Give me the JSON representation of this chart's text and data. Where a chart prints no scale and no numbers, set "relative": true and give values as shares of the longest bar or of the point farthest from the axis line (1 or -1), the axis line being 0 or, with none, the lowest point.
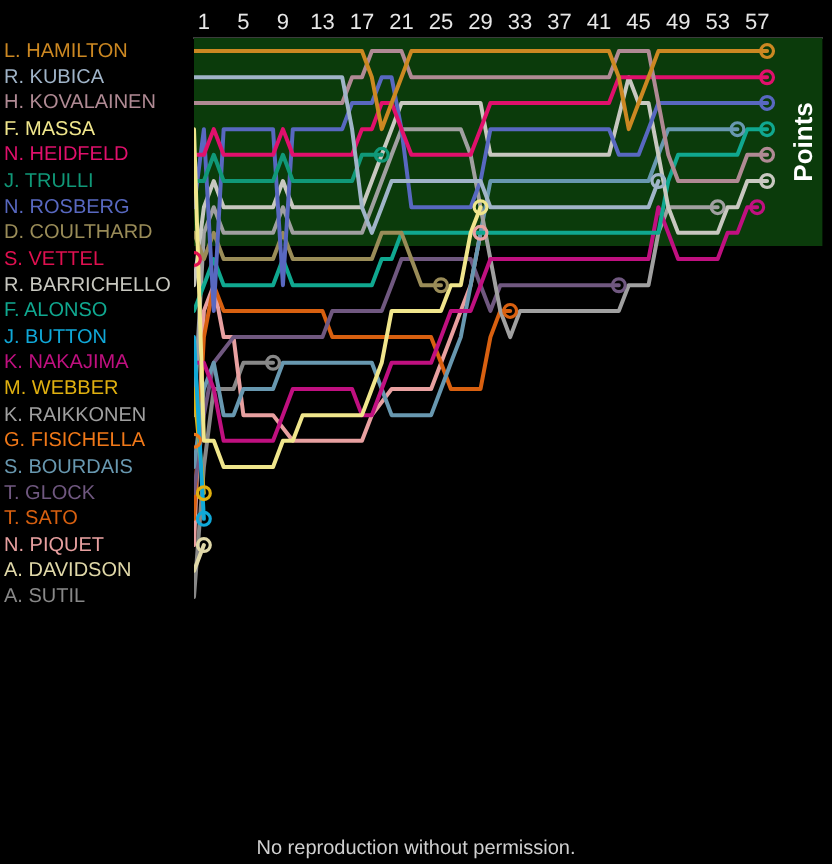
{
  "chart_data": {
    "type": "line",
    "relative": true,
    "xlim": [
      0,
      63.6
    ],
    "xticks": [
      1,
      5,
      9,
      13,
      17,
      21,
      25,
      29,
      33,
      37,
      41,
      45,
      49,
      53,
      57
    ],
    "bands": [
      {
        "axis": "y",
        "from": 0.643,
        "to": 1.024,
        "label": "Points",
        "color": "#0b3b0b"
      }
    ],
    "annotations": [
      "No reproduction without permission."
    ],
    "series": [
      {
        "name": "L. HAMILTON",
        "color": "#cc8822",
        "x": [
          0,
          17,
          18,
          19,
          20,
          21,
          22,
          42,
          43,
          44,
          45,
          46,
          47,
          58
        ],
        "values": [
          1,
          1,
          0.952,
          0.857,
          0.905,
          0.952,
          1,
          1,
          0.952,
          0.857,
          0.905,
          0.952,
          1,
          1
        ]
      },
      {
        "name": "R. KUBICA",
        "color": "#a0b4c8",
        "x": [
          0,
          15,
          16,
          17,
          18,
          19,
          20,
          29,
          30,
          46,
          47
        ],
        "values": [
          0.952,
          0.952,
          0.857,
          0.714,
          0.667,
          0.714,
          0.762,
          0.762,
          0.714,
          0.714,
          0.762
        ]
      },
      {
        "name": "H. KOVALAINEN",
        "color": "#b08a94",
        "x": [
          0,
          15,
          16,
          17,
          18,
          21,
          22,
          42,
          43,
          46,
          47,
          48,
          49,
          55,
          56,
          58
        ],
        "values": [
          0.905,
          0.905,
          0.952,
          0.952,
          1,
          1,
          0.952,
          0.952,
          1,
          1,
          0.905,
          0.81,
          0.762,
          0.762,
          0.81,
          0.81
        ]
      },
      {
        "name": "F. MASSA",
        "color": "#f0e68c",
        "x": [
          0,
          1,
          2,
          3,
          8,
          9,
          10,
          11,
          17,
          18,
          19,
          20,
          25,
          26,
          27,
          28,
          29
        ],
        "values": [
          0.857,
          0.286,
          0.286,
          0.238,
          0.238,
          0.286,
          0.286,
          0.333,
          0.333,
          0.381,
          0.429,
          0.524,
          0.524,
          0.571,
          0.571,
          0.667,
          0.714
        ]
      },
      {
        "name": "N. HEIDFELD",
        "color": "#e0106c",
        "x": [
          0,
          1,
          2,
          3,
          8,
          9,
          10,
          16,
          17,
          18,
          19,
          20,
          21,
          22,
          28,
          29,
          30,
          42,
          43,
          58
        ],
        "values": [
          0.81,
          0.81,
          0.857,
          0.81,
          0.81,
          0.857,
          0.81,
          0.81,
          0.857,
          0.857,
          0.905,
          0.905,
          0.857,
          0.81,
          0.81,
          0.857,
          0.905,
          0.905,
          0.952,
          0.952
        ]
      },
      {
        "name": "J. TRULLI",
        "color": "#109878",
        "x": [
          0,
          1,
          2,
          3,
          8,
          9,
          10,
          16,
          17,
          19
        ],
        "values": [
          0.762,
          0.762,
          0.81,
          0.762,
          0.762,
          0.81,
          0.762,
          0.762,
          0.81,
          0.81
        ]
      },
      {
        "name": "N. ROSBERG",
        "color": "#5868c0",
        "x": [
          0,
          1,
          2,
          3,
          8,
          9,
          10,
          15,
          16,
          18,
          19,
          20,
          21,
          22,
          28,
          29,
          30,
          42,
          43,
          45,
          46,
          47,
          58
        ],
        "values": [
          0.714,
          0.857,
          0.524,
          0.857,
          0.857,
          0.571,
          0.857,
          0.857,
          0.905,
          0.905,
          0.952,
          0.952,
          0.857,
          0.714,
          0.714,
          0.762,
          0.857,
          0.857,
          0.81,
          0.81,
          0.857,
          0.905,
          0.905
        ]
      },
      {
        "name": "D. COULTHARD",
        "color": "#9a8c58",
        "x": [
          0,
          1,
          2,
          3,
          8,
          9,
          10,
          18,
          19,
          21,
          22,
          23,
          25
        ],
        "values": [
          0.667,
          0.619,
          0.667,
          0.619,
          0.619,
          0.667,
          0.619,
          0.619,
          0.667,
          0.667,
          0.619,
          0.571,
          0.571
        ]
      },
      {
        "name": "S. VETTEL",
        "type": "scatter",
        "marker": "circle",
        "color": "#e01050",
        "x": [
          0
        ],
        "values": [
          0.619
        ]
      },
      {
        "name": "R. BARRICHELLO",
        "color": "#c8c8c0",
        "x": [
          0,
          1,
          2,
          3,
          8,
          9,
          10,
          17,
          18,
          19,
          20,
          21,
          29,
          30,
          42,
          44,
          45,
          46,
          47,
          48,
          49,
          53,
          54,
          55,
          56,
          58
        ],
        "values": [
          0.571,
          0.714,
          0.762,
          0.714,
          0.714,
          0.762,
          0.714,
          0.714,
          0.762,
          0.81,
          0.857,
          0.905,
          0.905,
          0.81,
          0.81,
          0.952,
          0.905,
          0.905,
          0.81,
          0.714,
          0.667,
          0.667,
          0.714,
          0.714,
          0.762,
          0.762
        ]
      },
      {
        "name": "F. ALONSO",
        "color": "#10a890",
        "x": [
          0,
          1,
          2,
          3,
          8,
          9,
          10,
          18,
          19,
          20,
          21,
          22,
          47,
          48,
          49,
          55,
          56,
          58
        ],
        "values": [
          0.524,
          0.571,
          0.619,
          0.571,
          0.571,
          0.619,
          0.571,
          0.571,
          0.619,
          0.619,
          0.667,
          0.667,
          0.667,
          0.762,
          0.81,
          0.81,
          0.857,
          0.857
        ]
      },
      {
        "name": "J. BUTTON",
        "color": "#10a8d8",
        "x": [
          0,
          1
        ],
        "values": [
          0.476,
          0.143
        ]
      },
      {
        "name": "K. NAKAJIMA",
        "color": "#c01080",
        "x": [
          0,
          1,
          2,
          3,
          8,
          9,
          10,
          16,
          17,
          18,
          19,
          20,
          24,
          25,
          26,
          28,
          29,
          30,
          46,
          47,
          48,
          49,
          53,
          54,
          55,
          56,
          57
        ],
        "values": [
          0.429,
          0.429,
          0.381,
          0.286,
          0.286,
          0.333,
          0.381,
          0.381,
          0.333,
          0.333,
          0.381,
          0.429,
          0.429,
          0.476,
          0.524,
          0.524,
          0.571,
          0.619,
          0.619,
          0.714,
          0.667,
          0.619,
          0.619,
          0.667,
          0.667,
          0.714,
          0.714
        ]
      },
      {
        "name": "M. WEBBER",
        "color": "#e0b010",
        "x": [
          0,
          1
        ],
        "values": [
          0.381,
          0.19
        ]
      },
      {
        "name": "K. RAIKKONEN",
        "color": "#a0a0a0",
        "x": [
          0,
          1,
          2,
          3,
          8,
          9,
          10,
          17,
          18,
          19,
          20,
          21,
          26,
          27,
          28,
          29,
          30,
          31,
          32,
          33,
          43,
          44,
          46,
          47,
          48,
          53
        ],
        "values": [
          0.333,
          0.667,
          0.714,
          0.667,
          0.667,
          0.714,
          0.667,
          0.667,
          0.714,
          0.762,
          0.81,
          0.857,
          0.857,
          0.857,
          0.81,
          0.714,
          0.619,
          0.524,
          0.476,
          0.524,
          0.524,
          0.571,
          0.571,
          0.667,
          0.714,
          0.714
        ]
      },
      {
        "name": "G. FISICHELLA",
        "type": "scatter",
        "marker": "circle",
        "color": "#f07818",
        "x": [
          0
        ],
        "values": [
          0.286
        ]
      },
      {
        "name": "S. BOURDAIS",
        "color": "#6898b0",
        "x": [
          0,
          1,
          2,
          3,
          4,
          5,
          8,
          9,
          18,
          19,
          20,
          24,
          25,
          26,
          27,
          28,
          29,
          30,
          46,
          47,
          48,
          55
        ],
        "values": [
          0.238,
          0.381,
          0.429,
          0.333,
          0.333,
          0.381,
          0.381,
          0.429,
          0.429,
          0.381,
          0.333,
          0.333,
          0.381,
          0.429,
          0.476,
          0.571,
          0.667,
          0.762,
          0.762,
          0.81,
          0.857,
          0.857
        ]
      },
      {
        "name": "T. GLOCK",
        "color": "#705880",
        "x": [
          0,
          1,
          2,
          4,
          13,
          14,
          19,
          20,
          21,
          28,
          29,
          30,
          31,
          43
        ],
        "values": [
          0.19,
          0.333,
          0.429,
          0.476,
          0.476,
          0.524,
          0.524,
          0.571,
          0.619,
          0.619,
          0.571,
          0.524,
          0.571,
          0.571
        ]
      },
      {
        "name": "T. SATO",
        "color": "#d86010",
        "x": [
          0,
          1,
          2,
          3,
          13,
          14,
          24,
          25,
          26,
          29,
          30,
          31,
          32
        ],
        "values": [
          0.143,
          0.476,
          0.571,
          0.524,
          0.524,
          0.476,
          0.476,
          0.429,
          0.381,
          0.381,
          0.476,
          0.524,
          0.524
        ]
      },
      {
        "name": "N. PIQUET",
        "color": "#e8a0a0",
        "x": [
          0,
          1,
          2,
          3,
          4,
          5,
          8,
          10,
          17,
          18,
          20,
          24,
          26,
          27,
          28,
          29
        ],
        "values": [
          0.095,
          0.524,
          0.571,
          0.476,
          0.476,
          0.333,
          0.333,
          0.286,
          0.286,
          0.333,
          0.381,
          0.381,
          0.476,
          0.524,
          0.571,
          0.667
        ]
      },
      {
        "name": "A. DAVIDSON",
        "color": "#e0d8a8",
        "x": [
          0,
          1
        ],
        "values": [
          0.048,
          0.095
        ]
      },
      {
        "name": "A. SUTIL",
        "color": "#888888",
        "x": [
          0,
          1,
          2,
          3,
          4,
          5,
          8
        ],
        "values": [
          0,
          0.238,
          0.381,
          0.381,
          0.381,
          0.429,
          0.429
        ]
      },
      {
        "type": "scatter",
        "marker": "circle",
        "x": [
          58,
          47,
          58,
          29,
          58,
          19,
          58,
          25,
          58,
          58,
          1,
          57,
          1,
          53,
          55,
          43,
          32,
          29,
          1,
          8
        ],
        "values": [
          1,
          0.762,
          0.81,
          0.714,
          0.952,
          0.81,
          0.905,
          0.571,
          0.762,
          0.857,
          0.143,
          0.714,
          0.19,
          0.714,
          0.857,
          0.571,
          0.524,
          0.667,
          0.095,
          0.429
        ],
        "colors": [
          "#cc8822",
          "#a0b4c8",
          "#b08a94",
          "#f0e68c",
          "#e0106c",
          "#109878",
          "#5868c0",
          "#9a8c58",
          "#c8c8c0",
          "#10a890",
          "#10a8d8",
          "#c01080",
          "#e0b010",
          "#a0a0a0",
          "#6898b0",
          "#705880",
          "#d86010",
          "#e8a0a0",
          "#e0d8a8",
          "#888888"
        ]
      }
    ]
  }
}
